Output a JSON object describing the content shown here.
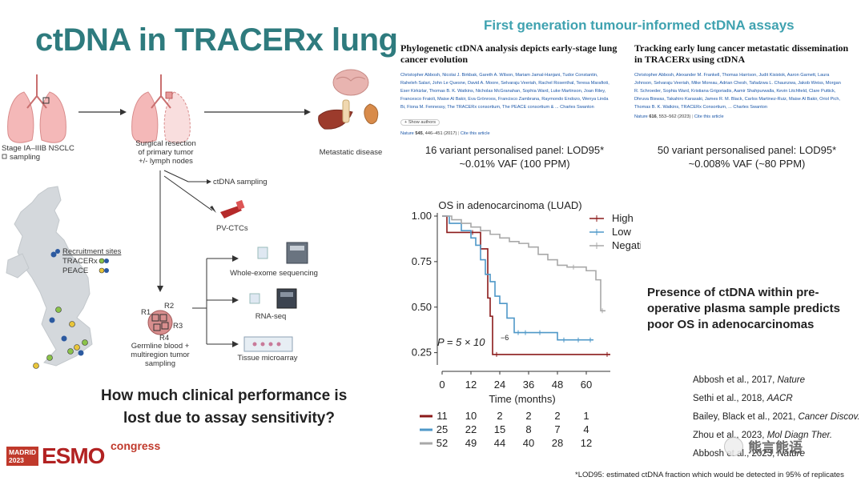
{
  "title": "ctDNA in TRACERx lung",
  "subtitle": "First generation tumour-informed ctDNA assays",
  "papers": [
    {
      "title": "Phylogenetic ctDNA analysis depicts early-stage lung cancer evolution",
      "authors_lines": [
        "Christopher Abbosh, Nicolai J. Birkbak, Gareth A. Wilson, Mariam Jamal-Hanjani, Tudor Constantin,",
        "Raheleh Salari, John Le Quesne, David A. Moore, Selvaraju Veeriah, Rachel Rosenthal, Teresa Marafioti,",
        "Eser Kirkizlar, Thomas B. K. Watkins, Nicholas McGranahan, Sophia Ward, Luke Martinson, Joan Riley,",
        "Francesco Fraioli, Maise Al Bakir, Eva Grönroos, Francisco Zambrana, Raymondo Endozo, Wenya Linda",
        "Bi, Fiona M. Fennessy, The TRACERx consortium, The PEACE consortium & ... Charles Swanton"
      ],
      "show_authors": "+ Show authors",
      "journal": "Nature",
      "volume": "545",
      "pages_year": ", 446–451 (2017)",
      "cite": "Cite this article",
      "panel_line1": "16 variant personalised panel: LOD95*",
      "panel_line2": "~0.01% VAF (100 PPM)"
    },
    {
      "title": "Tracking early lung cancer metastatic dissemination in TRACERx using ctDNA",
      "authors_lines": [
        "Christopher Abbosh, Alexander M. Frankell, Thomas Harrison, Judit Kisistok, Aaron Garnett, Laura",
        "Johnson, Selvaraju Veeriah, Mike Moreau, Adrian Chesh, Tafadzwa L. Chaunzwa, Jakob Weiss, Morgan",
        "R. Schroeder, Sophia Ward, Kristiana Grigoriadis, Aamir Shahpurwalla, Kevin Litchfield, Clare Puttick,",
        "Dhruva Biswas, Takahiro Karasaki, James R. M. Black, Carlos Martinez-Ruiz, Maise Al Bakir, Oriol Pich,",
        "Thomas B. K. Watkins, TRACERx Consortium, ... Charles Swanton"
      ],
      "show_authors": "+ Show authors",
      "journal": "Nature",
      "volume": "616",
      "pages_year": ", 553–562 (2023)",
      "cite": "Cite this article",
      "panel_line1": "50 variant personalised panel: LOD95*",
      "panel_line2": "~0.008% VAF (~80 PPM)"
    }
  ],
  "diagram": {
    "stage_label": "Stage IA–IIIB NSCLC",
    "sampling_label": "sampling",
    "surgery_label_lines": [
      "Surgical resection",
      "of primary tumor",
      "+/- lymph nodes"
    ],
    "metastatic_label": "Metastatic disease",
    "ctdna_sampling": "ctDNA sampling",
    "pvctcs": "PV-CTCs",
    "recruitment_sites": "Recruitment sites",
    "tracerx": "TRACERx",
    "peace": "PEACE",
    "wes": "Whole-exome sequencing",
    "rnaseq": "RNA-seq",
    "tma": "Tissue microarray",
    "regions": [
      "R1",
      "R2",
      "R3",
      "R4"
    ],
    "germline_lines": [
      "Germline blood +",
      "multiregion tumor",
      "sampling"
    ]
  },
  "question_lines": [
    "How much clinical performance is",
    "lost due to assay sensitivity?"
  ],
  "presence_lines": [
    "Presence of ctDNA within pre-",
    "operative plasma sample predicts",
    "poor OS in adenocarcinomas"
  ],
  "references": [
    {
      "text": "Abbosh et al., 2017, ",
      "journal": "Nature"
    },
    {
      "text": "Sethi et al., 2018, ",
      "journal": "AACR"
    },
    {
      "text": "Bailey, Black et al., 2021, ",
      "journal": "Cancer Discov."
    },
    {
      "text": "Zhou et al., 2023, ",
      "journal": "Mol Diagn Ther."
    },
    {
      "text": "Abbosh et al., 2023, ",
      "journal": "Nature"
    }
  ],
  "footnote": "*LOD95: estimated ctDNA fraction which would be detected in 95% of replicates",
  "logo": {
    "city": "MADRID",
    "year": "2023",
    "brand": "ESMO",
    "suffix": "congress"
  },
  "watermark": "熊言熊语",
  "chart_data": {
    "type": "line",
    "title": "OS in adenocarcinoma (LUAD)",
    "xlabel": "Time (months)",
    "ylabel": "",
    "xlim": [
      0,
      70
    ],
    "ylim": [
      0.2,
      1.0
    ],
    "xticks": [
      0,
      12,
      24,
      36,
      48,
      60
    ],
    "yticks": [
      1.0,
      0.75,
      0.5,
      0.25
    ],
    "ytick_labels": [
      "1.00",
      "0.75",
      "0.50",
      "0.25"
    ],
    "annotation": "P = 5 × 10",
    "annotation_exp": "−6",
    "legend_position": "top-right",
    "series": [
      {
        "name": "High",
        "color": "#8b1a1a",
        "x": [
          0,
          2,
          14,
          16,
          19,
          20,
          21,
          24,
          70
        ],
        "y": [
          1.0,
          0.91,
          0.91,
          0.82,
          0.55,
          0.45,
          0.24,
          0.24,
          0.24
        ]
      },
      {
        "name": "Low",
        "color": "#4f98c8",
        "x": [
          0,
          3,
          8,
          12,
          14,
          16,
          18,
          20,
          22,
          24,
          27,
          30,
          33,
          36,
          42,
          48,
          52,
          58,
          63
        ],
        "y": [
          1.0,
          0.96,
          0.92,
          0.88,
          0.84,
          0.76,
          0.68,
          0.64,
          0.56,
          0.52,
          0.44,
          0.36,
          0.36,
          0.36,
          0.36,
          0.32,
          0.32,
          0.32,
          0.32
        ]
      },
      {
        "name": "Negative",
        "color": "#a8a8a8",
        "x": [
          0,
          4,
          8,
          12,
          16,
          20,
          24,
          28,
          32,
          36,
          40,
          44,
          48,
          52,
          56,
          60,
          64,
          66,
          68
        ],
        "y": [
          1.0,
          0.98,
          0.96,
          0.94,
          0.92,
          0.9,
          0.88,
          0.86,
          0.85,
          0.83,
          0.79,
          0.76,
          0.73,
          0.72,
          0.72,
          0.7,
          0.65,
          0.48,
          0.48
        ]
      }
    ],
    "risk_table": {
      "times": [
        0,
        12,
        24,
        36,
        48,
        60
      ],
      "rows": [
        {
          "name": "High",
          "color": "#8b1a1a",
          "values": [
            11,
            10,
            2,
            2,
            2,
            1
          ]
        },
        {
          "name": "Low",
          "color": "#4f98c8",
          "values": [
            25,
            22,
            15,
            8,
            7,
            4
          ]
        },
        {
          "name": "Negative",
          "color": "#a8a8a8",
          "values": [
            52,
            49,
            44,
            40,
            28,
            12
          ]
        }
      ]
    }
  }
}
